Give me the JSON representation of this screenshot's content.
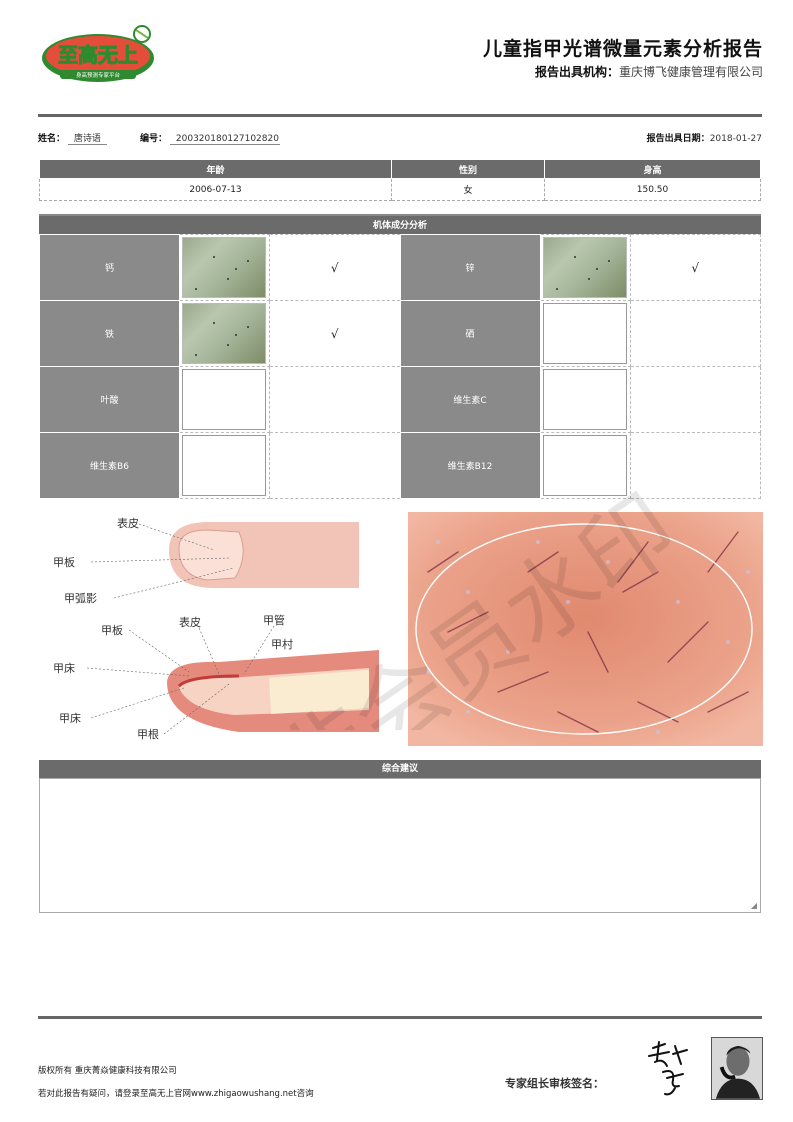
{
  "logo": {
    "text": "至高无上",
    "tagline": "身高预测专家平台"
  },
  "header": {
    "title": "儿童指甲光谱微量元素分析报告",
    "org_label": "报告出具机构：",
    "org_name": "重庆博飞健康管理有限公司"
  },
  "info": {
    "name_label": "姓名：",
    "name": "唐诗语",
    "no_label": "编号：",
    "no": "200320180127102820",
    "date_label": "报告出具日期：",
    "date": "2018-01-27"
  },
  "basic": {
    "headers": [
      "年龄",
      "性别",
      "身高"
    ],
    "values": [
      "2006-07-13",
      "女",
      "150.50"
    ]
  },
  "analysis": {
    "title": "机体成分分析",
    "rows": [
      {
        "left": {
          "name": "钙",
          "has_image": true,
          "mark": "√"
        },
        "right": {
          "name": "锌",
          "has_image": true,
          "mark": "√"
        }
      },
      {
        "left": {
          "name": "铁",
          "has_image": true,
          "mark": "√"
        },
        "right": {
          "name": "硒",
          "has_image": false,
          "mark": ""
        }
      },
      {
        "left": {
          "name": "叶酸",
          "has_image": false,
          "mark": ""
        },
        "right": {
          "name": "维生素C",
          "has_image": false,
          "mark": ""
        }
      },
      {
        "left": {
          "name": "维生素B6",
          "has_image": false,
          "mark": ""
        },
        "right": {
          "name": "维生素B12",
          "has_image": false,
          "mark": ""
        }
      }
    ]
  },
  "diagram": {
    "labels": [
      "表皮",
      "甲板",
      "甲弧影",
      "甲板",
      "表皮",
      "甲管",
      "甲村",
      "甲床",
      "甲床",
      "甲根"
    ]
  },
  "advice": {
    "title": "综合建议",
    "content": ""
  },
  "footer": {
    "copyright": "版权所有 重庆菁焱健康科技有限公司",
    "note": "若对此报告有疑问，请登录至高无上官网www.zhigaowushang.net咨询",
    "sign_label": "专家组长审核签名："
  },
  "watermark": {
    "text": "非会员水印"
  },
  "colors": {
    "header_bar": "#6b6b6b",
    "name_cell": "#8a8a8a",
    "skin": "#e8a99a",
    "micro_bg": "#e49a82"
  }
}
